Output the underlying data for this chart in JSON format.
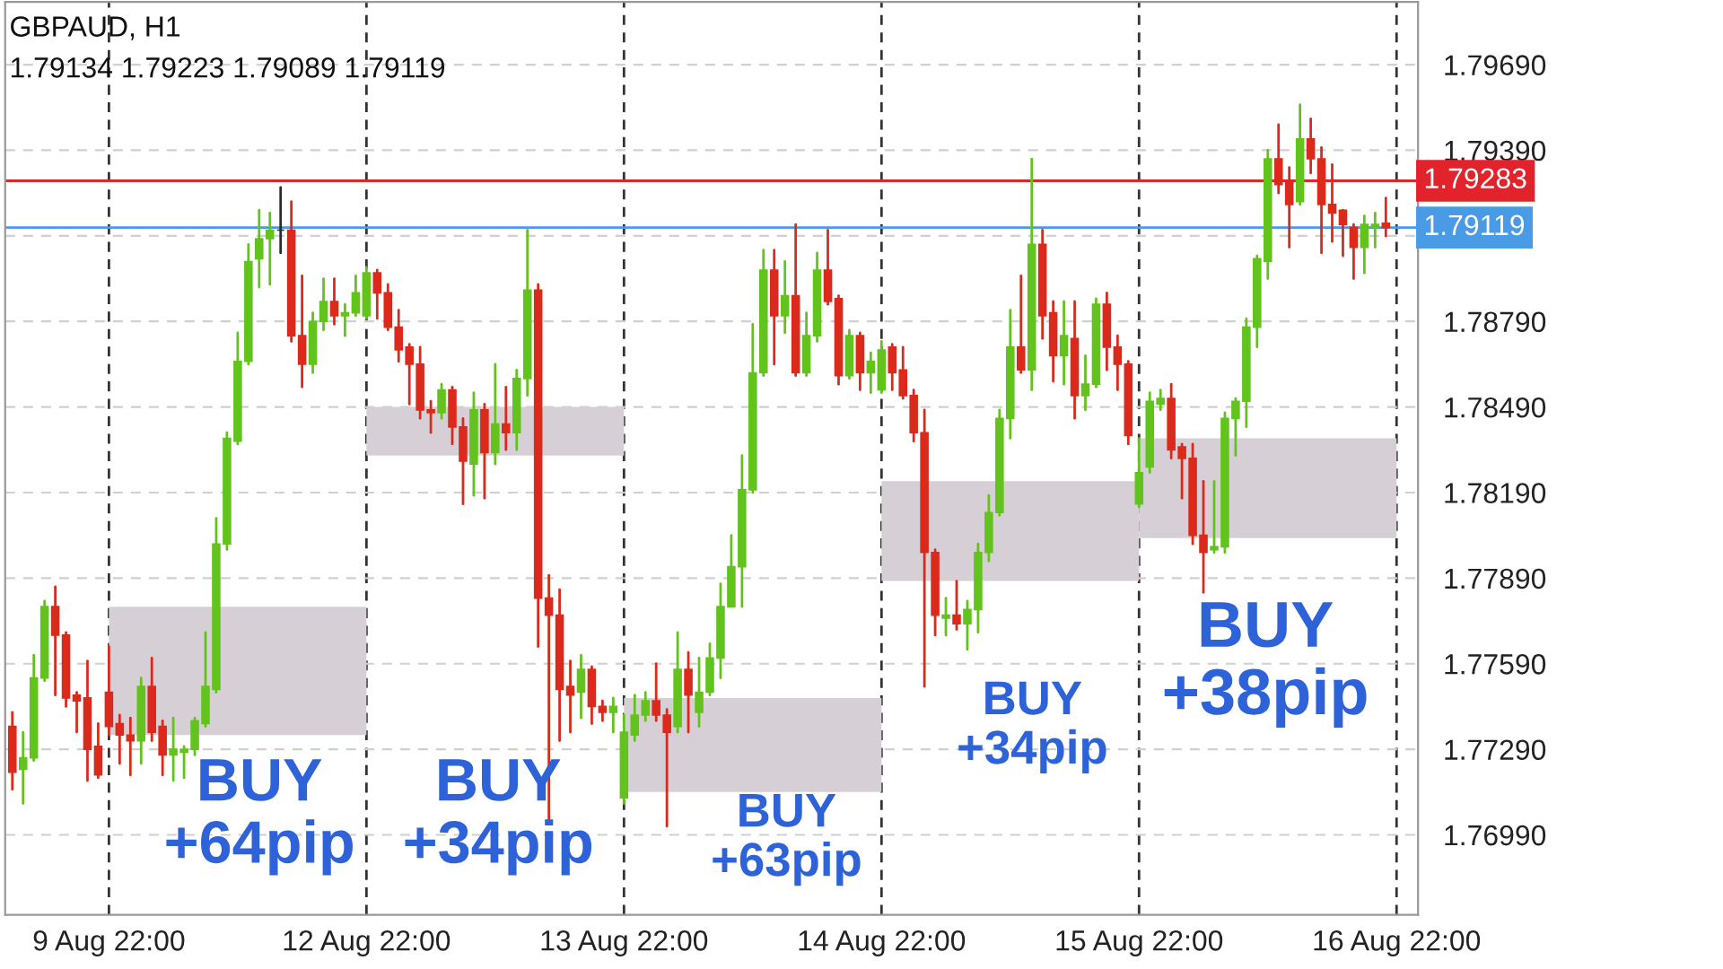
{
  "chart_data": {
    "type": "candlestick",
    "title": "GBPAUD, H1",
    "subtitle": "1.79134 1.79223 1.79089 1.79119",
    "categories": [
      null,
      null,
      null,
      null,
      null,
      null,
      null,
      null,
      null,
      "9 Aug 22:00",
      null,
      null,
      null,
      null,
      null,
      null,
      null,
      null,
      null,
      null,
      null,
      null,
      null,
      null,
      null,
      null,
      null,
      null,
      null,
      null,
      null,
      null,
      null,
      "12 Aug 22:00",
      null,
      null,
      null,
      null,
      null,
      null,
      null,
      null,
      null,
      null,
      null,
      null,
      null,
      null,
      null,
      null,
      null,
      null,
      null,
      null,
      null,
      null,
      null,
      "13 Aug 22:00",
      null,
      null,
      null,
      null,
      null,
      null,
      null,
      null,
      null,
      null,
      null,
      null,
      null,
      null,
      null,
      null,
      null,
      null,
      null,
      null,
      null,
      null,
      null,
      "14 Aug 22:00",
      null,
      null,
      null,
      null,
      null,
      null,
      null,
      null,
      null,
      null,
      null,
      null,
      null,
      null,
      null,
      null,
      null,
      null,
      null,
      null,
      null,
      null,
      null,
      "15 Aug 22:00",
      null,
      null,
      null,
      null,
      null,
      null,
      null,
      null,
      null,
      null,
      null,
      null,
      null,
      null,
      null,
      null,
      null,
      null,
      null,
      null,
      null,
      null,
      null,
      "16 Aug 22:00"
    ],
    "ohlc": [
      [
        1.7737,
        1.7742,
        1.7715,
        1.7721
      ],
      [
        1.7722,
        1.7735,
        1.771,
        1.7726
      ],
      [
        1.7726,
        1.7762,
        1.7725,
        1.7754
      ],
      [
        1.7754,
        1.7781,
        1.7753,
        1.7779
      ],
      [
        1.7779,
        1.7786,
        1.7748,
        1.7769
      ],
      [
        1.7769,
        1.777,
        1.7744,
        1.7747
      ],
      [
        1.7748,
        1.7749,
        1.7735,
        1.7746
      ],
      [
        1.7747,
        1.776,
        1.7718,
        1.7729
      ],
      [
        1.773,
        1.7738,
        1.7719,
        1.772
      ],
      [
        1.7749,
        1.7765,
        1.7734,
        1.7737
      ],
      [
        1.7738,
        1.7741,
        1.7724,
        1.7734
      ],
      [
        1.7734,
        1.774,
        1.772,
        1.7732
      ],
      [
        1.7732,
        1.7754,
        1.7724,
        1.7751
      ],
      [
        1.7751,
        1.7761,
        1.7732,
        1.7735
      ],
      [
        1.7737,
        1.7739,
        1.772,
        1.7727
      ],
      [
        1.7727,
        1.774,
        1.7718,
        1.7729
      ],
      [
        1.7728,
        1.773,
        1.7719,
        1.7729
      ],
      [
        1.7729,
        1.774,
        1.7727,
        1.7739
      ],
      [
        1.7738,
        1.777,
        1.7737,
        1.7751
      ],
      [
        1.775,
        1.781,
        1.7749,
        1.7801
      ],
      [
        1.7801,
        1.784,
        1.7799,
        1.7838
      ],
      [
        1.7837,
        1.7875,
        1.7836,
        1.7865
      ],
      [
        1.7865,
        1.7906,
        1.7864,
        1.79
      ],
      [
        1.7901,
        1.7918,
        1.7891,
        1.7908
      ],
      [
        1.7908,
        1.7917,
        1.7892,
        1.7911
      ],
      [
        1.7911,
        1.7926,
        1.7903,
        1.7911
      ],
      [
        1.7911,
        1.7921,
        1.7872,
        1.7874
      ],
      [
        1.7874,
        1.7895,
        1.7856,
        1.7864
      ],
      [
        1.7864,
        1.7882,
        1.7861,
        1.7879
      ],
      [
        1.7879,
        1.7894,
        1.7876,
        1.7886
      ],
      [
        1.7886,
        1.7894,
        1.7878,
        1.7881
      ],
      [
        1.7881,
        1.7885,
        1.7874,
        1.7882
      ],
      [
        1.7882,
        1.7895,
        1.7881,
        1.7889
      ],
      [
        1.7881,
        1.7898,
        1.788,
        1.7896
      ],
      [
        1.7896,
        1.7897,
        1.788,
        1.7889
      ],
      [
        1.7889,
        1.7892,
        1.7876,
        1.7877
      ],
      [
        1.7877,
        1.7883,
        1.7865,
        1.7869
      ],
      [
        1.787,
        1.7871,
        1.785,
        1.7864
      ],
      [
        1.7864,
        1.787,
        1.7845,
        1.7848
      ],
      [
        1.7848,
        1.7851,
        1.784,
        1.7847
      ],
      [
        1.7847,
        1.7857,
        1.7845,
        1.7855
      ],
      [
        1.7855,
        1.7856,
        1.7836,
        1.7842
      ],
      [
        1.7842,
        1.7845,
        1.7815,
        1.783
      ],
      [
        1.7829,
        1.7854,
        1.7818,
        1.7848
      ],
      [
        1.7848,
        1.785,
        1.7817,
        1.7833
      ],
      [
        1.7833,
        1.7864,
        1.7829,
        1.7843
      ],
      [
        1.7843,
        1.7856,
        1.7834,
        1.784
      ],
      [
        1.784,
        1.7862,
        1.7834,
        1.7859
      ],
      [
        1.7859,
        1.7911,
        1.7853,
        1.789
      ],
      [
        1.789,
        1.7892,
        1.7765,
        1.7782
      ],
      [
        1.7782,
        1.779,
        1.7704,
        1.7776
      ],
      [
        1.7776,
        1.7785,
        1.7732,
        1.775
      ],
      [
        1.7751,
        1.776,
        1.7735,
        1.7748
      ],
      [
        1.7749,
        1.7762,
        1.774,
        1.7757
      ],
      [
        1.7757,
        1.7758,
        1.7738,
        1.7744
      ],
      [
        1.7744,
        1.7746,
        1.7739,
        1.7742
      ],
      [
        1.7742,
        1.7747,
        1.7735,
        1.7744
      ],
      [
        1.7712,
        1.7741,
        1.771,
        1.7735
      ],
      [
        1.7734,
        1.7748,
        1.7732,
        1.7741
      ],
      [
        1.7741,
        1.7749,
        1.7739,
        1.7746
      ],
      [
        1.7746,
        1.7759,
        1.7739,
        1.7741
      ],
      [
        1.7741,
        1.7743,
        1.7702,
        1.7735
      ],
      [
        1.7737,
        1.777,
        1.7735,
        1.7757
      ],
      [
        1.7757,
        1.7763,
        1.7735,
        1.7748
      ],
      [
        1.7742,
        1.7761,
        1.7737,
        1.7749
      ],
      [
        1.7749,
        1.7766,
        1.7748,
        1.7761
      ],
      [
        1.7761,
        1.7787,
        1.7754,
        1.7779
      ],
      [
        1.7779,
        1.7804,
        1.7779,
        1.7793
      ],
      [
        1.7793,
        1.7832,
        1.7779,
        1.782
      ],
      [
        1.782,
        1.7878,
        1.7819,
        1.7861
      ],
      [
        1.7861,
        1.7904,
        1.786,
        1.7897
      ],
      [
        1.7897,
        1.7904,
        1.7864,
        1.7881
      ],
      [
        1.7881,
        1.79,
        1.7875,
        1.7888
      ],
      [
        1.7888,
        1.7913,
        1.786,
        1.7861
      ],
      [
        1.7861,
        1.7882,
        1.786,
        1.7874
      ],
      [
        1.7874,
        1.7903,
        1.7872,
        1.7897
      ],
      [
        1.7897,
        1.7911,
        1.7885,
        1.7886
      ],
      [
        1.7887,
        1.7888,
        1.7857,
        1.786
      ],
      [
        1.786,
        1.7876,
        1.7859,
        1.7874
      ],
      [
        1.7874,
        1.7875,
        1.7855,
        1.7861
      ],
      [
        1.7861,
        1.7868,
        1.7854,
        1.7865
      ],
      [
        1.7855,
        1.7872,
        1.7854,
        1.7869
      ],
      [
        1.787,
        1.7871,
        1.7855,
        1.7861
      ],
      [
        1.7862,
        1.787,
        1.7852,
        1.7853
      ],
      [
        1.7853,
        1.7855,
        1.7837,
        1.784
      ],
      [
        1.784,
        1.7848,
        1.7751,
        1.7798
      ],
      [
        1.7798,
        1.7799,
        1.7769,
        1.7776
      ],
      [
        1.7775,
        1.7782,
        1.7769,
        1.7776
      ],
      [
        1.7776,
        1.7788,
        1.7771,
        1.7773
      ],
      [
        1.7773,
        1.7781,
        1.7764,
        1.7778
      ],
      [
        1.7778,
        1.7801,
        1.777,
        1.7798
      ],
      [
        1.7798,
        1.7818,
        1.7795,
        1.7812
      ],
      [
        1.7812,
        1.7848,
        1.7811,
        1.7845
      ],
      [
        1.7845,
        1.7883,
        1.7838,
        1.787
      ],
      [
        1.787,
        1.7895,
        1.7861,
        1.7862
      ],
      [
        1.7862,
        1.7936,
        1.7855,
        1.7906
      ],
      [
        1.7906,
        1.7911,
        1.7873,
        1.7881
      ],
      [
        1.7882,
        1.7886,
        1.7858,
        1.7867
      ],
      [
        1.7867,
        1.7886,
        1.7857,
        1.7874
      ],
      [
        1.7873,
        1.7886,
        1.7845,
        1.7853
      ],
      [
        1.7853,
        1.7867,
        1.7848,
        1.7857
      ],
      [
        1.7857,
        1.7887,
        1.7856,
        1.7885
      ],
      [
        1.7885,
        1.7889,
        1.7862,
        1.787
      ],
      [
        1.787,
        1.7874,
        1.7855,
        1.7864
      ],
      [
        1.7864,
        1.7865,
        1.7836,
        1.7839
      ],
      [
        1.7815,
        1.7838,
        1.7814,
        1.7826
      ],
      [
        1.7828,
        1.7854,
        1.7826,
        1.7851
      ],
      [
        1.785,
        1.7855,
        1.7848,
        1.7852
      ],
      [
        1.7852,
        1.7857,
        1.7831,
        1.7834
      ],
      [
        1.7835,
        1.7836,
        1.7817,
        1.7831
      ],
      [
        1.7831,
        1.7836,
        1.7801,
        1.7804
      ],
      [
        1.7804,
        1.7823,
        1.7784,
        1.7798
      ],
      [
        1.7799,
        1.7823,
        1.7798,
        1.78
      ],
      [
        1.78,
        1.7847,
        1.7798,
        1.7845
      ],
      [
        1.7845,
        1.7852,
        1.7832,
        1.7851
      ],
      [
        1.7851,
        1.788,
        1.7842,
        1.7877
      ],
      [
        1.7877,
        1.7902,
        1.787,
        1.7901
      ],
      [
        1.79,
        1.7939,
        1.7894,
        1.7936
      ],
      [
        1.7936,
        1.7948,
        1.7924,
        1.7927
      ],
      [
        1.7928,
        1.7933,
        1.7905,
        1.792
      ],
      [
        1.7921,
        1.7955,
        1.792,
        1.7943
      ],
      [
        1.7943,
        1.795,
        1.7931,
        1.7936
      ],
      [
        1.7936,
        1.794,
        1.7903,
        1.792
      ],
      [
        1.792,
        1.7934,
        1.7907,
        1.7917
      ],
      [
        1.7918,
        1.7918,
        1.7902,
        1.7913
      ],
      [
        1.7912,
        1.7913,
        1.7894,
        1.7905
      ],
      [
        1.7905,
        1.7916,
        1.7896,
        1.7913
      ],
      [
        1.7912,
        1.7917,
        1.7905,
        1.7913
      ],
      [
        1.79134,
        1.79223,
        1.79089,
        1.79119
      ],
      null
    ],
    "colors": [
      "#db2a1c",
      "#63c31d",
      "#63c31d",
      "#63c31d",
      "#db2a1c",
      "#db2a1c",
      "#db2a1c",
      "#db2a1c",
      "#db2a1c",
      "#db2a1c",
      "#db2a1c",
      "#db2a1c",
      "#63c31d",
      "#db2a1c",
      "#db2a1c",
      "#63c31d",
      "#63c31d",
      "#63c31d",
      "#63c31d",
      "#63c31d",
      "#63c31d",
      "#63c31d",
      "#63c31d",
      "#63c31d",
      "#63c31d",
      "#2b2b2b",
      "#db2a1c",
      "#db2a1c",
      "#63c31d",
      "#63c31d",
      "#db2a1c",
      "#63c31d",
      "#63c31d",
      "#63c31d",
      "#db2a1c",
      "#db2a1c",
      "#db2a1c",
      "#db2a1c",
      "#db2a1c",
      "#db2a1c",
      "#63c31d",
      "#db2a1c",
      "#db2a1c",
      "#63c31d",
      "#db2a1c",
      "#63c31d",
      "#db2a1c",
      "#63c31d",
      "#63c31d",
      "#db2a1c",
      "#db2a1c",
      "#db2a1c",
      "#db2a1c",
      "#63c31d",
      "#db2a1c",
      "#db2a1c",
      "#63c31d",
      "#63c31d",
      "#63c31d",
      "#63c31d",
      "#db2a1c",
      "#db2a1c",
      "#63c31d",
      "#db2a1c",
      "#63c31d",
      "#63c31d",
      "#63c31d",
      "#63c31d",
      "#63c31d",
      "#63c31d",
      "#63c31d",
      "#db2a1c",
      "#63c31d",
      "#db2a1c",
      "#63c31d",
      "#63c31d",
      "#db2a1c",
      "#db2a1c",
      "#63c31d",
      "#db2a1c",
      "#63c31d",
      "#63c31d",
      "#db2a1c",
      "#db2a1c",
      "#db2a1c",
      "#db2a1c",
      "#db2a1c",
      "#63c31d",
      "#db2a1c",
      "#63c31d",
      "#63c31d",
      "#63c31d",
      "#63c31d",
      "#63c31d",
      "#db2a1c",
      "#63c31d",
      "#db2a1c",
      "#db2a1c",
      "#63c31d",
      "#db2a1c",
      "#63c31d",
      "#63c31d",
      "#db2a1c",
      "#db2a1c",
      "#db2a1c",
      "#63c31d",
      "#63c31d",
      "#63c31d",
      "#db2a1c",
      "#db2a1c",
      "#db2a1c",
      "#db2a1c",
      "#63c31d",
      "#63c31d",
      "#63c31d",
      "#63c31d",
      "#63c31d",
      "#63c31d",
      "#db2a1c",
      "#db2a1c",
      "#63c31d",
      "#db2a1c",
      "#db2a1c",
      "#db2a1c",
      "#db2a1c",
      "#db2a1c",
      "#63c31d",
      "#63c31d",
      "#db2a1c",
      null
    ],
    "ylim": [
      1.7671,
      1.7991
    ],
    "yticks": [
      {
        "value": 1.7699,
        "label": "1.76990"
      },
      {
        "value": 1.7729,
        "label": "1.77290"
      },
      {
        "value": 1.7759,
        "label": "1.77590"
      },
      {
        "value": 1.7789,
        "label": "1.77890"
      },
      {
        "value": 1.7819,
        "label": "1.78190"
      },
      {
        "value": 1.7849,
        "label": "1.78490"
      },
      {
        "value": 1.7879,
        "label": "1.78790"
      },
      {
        "value": 1.7909,
        "label": null
      },
      {
        "value": 1.7939,
        "label": "1.79390"
      },
      {
        "value": 1.7969,
        "label": "1.79690"
      }
    ],
    "grid": true,
    "ref_lines": [
      {
        "axis": "y",
        "value": 1.79283,
        "label": "1.79283",
        "color": "#e3232b"
      },
      {
        "axis": "y",
        "value": 1.79119,
        "label": "1.79119",
        "color": "#4a9be6"
      }
    ],
    "bands": [
      {
        "axis": "y",
        "from": 1.7734,
        "to": 1.7779,
        "color": "#d6d0d6"
      },
      {
        "axis": "y",
        "from": 1.7832,
        "to": 1.7849,
        "color": "#d6d0d6"
      },
      {
        "axis": "y",
        "from": 1.7714,
        "to": 1.7747,
        "color": "#d6d0d6"
      },
      {
        "axis": "y",
        "from": 1.7788,
        "to": 1.7823,
        "color": "#d6d0d6"
      },
      {
        "axis": "y",
        "from": 1.7803,
        "to": 1.7838,
        "color": "#d6d0d6"
      }
    ],
    "annotations": [
      "BUY\n+64pip",
      "BUY\n+34pip",
      "BUY\n+63pip",
      "BUY\n+34pip",
      "BUY\n+38pip"
    ]
  }
}
